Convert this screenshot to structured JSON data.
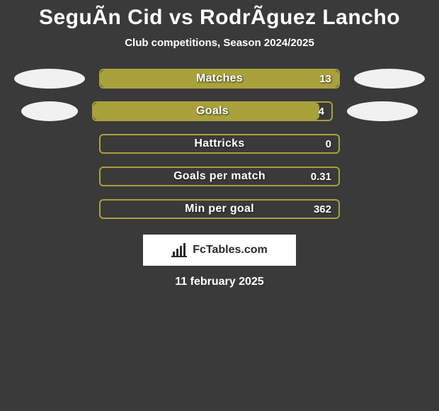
{
  "background_color": "#3a3a3a",
  "title": {
    "text": "SeguÃ­n Cid vs RodrÃ­guez Lancho",
    "color": "#ffffff",
    "fontsize": 30
  },
  "subtitle": {
    "text": "Club competitions, Season 2024/2025",
    "color": "#ffffff",
    "fontsize": 15
  },
  "bar_style": {
    "slot_border_color": "#a9a13c",
    "slot_border_width": 2,
    "fill_color": "#a9a13c",
    "label_color": "#ffffff",
    "value_color": "#ffffff",
    "label_fontsize": 16,
    "value_fontsize": 15,
    "bar_radius": 6
  },
  "side_blobs": {
    "color": "#f1f1f1",
    "left_width": 100,
    "right_width": 100
  },
  "rows": [
    {
      "label": "Matches",
      "value_text": "13",
      "fill_pct": 100,
      "show_blobs": true,
      "left_blob_w": 100,
      "right_blob_w": 100
    },
    {
      "label": "Goals",
      "value_text": "4",
      "fill_pct": 95,
      "show_blobs": true,
      "left_blob_w": 80,
      "right_blob_w": 100
    },
    {
      "label": "Hattricks",
      "value_text": "0",
      "fill_pct": 0,
      "show_blobs": false
    },
    {
      "label": "Goals per match",
      "value_text": "0.31",
      "fill_pct": 0,
      "show_blobs": false
    },
    {
      "label": "Min per goal",
      "value_text": "362",
      "fill_pct": 0,
      "show_blobs": false
    }
  ],
  "branding": {
    "bg": "#ffffff",
    "text": "FcTables.com",
    "text_color": "#2a2a2a",
    "fontsize": 16
  },
  "date": {
    "text": "11 february 2025",
    "color": "#ffffff",
    "fontsize": 16
  }
}
